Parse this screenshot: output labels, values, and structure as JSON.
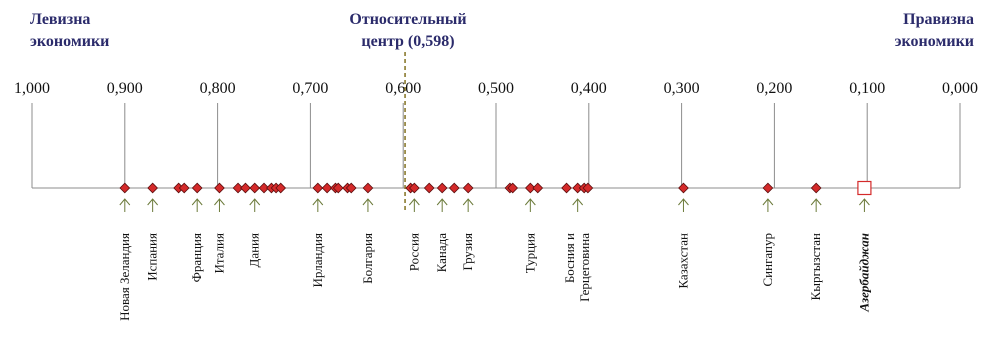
{
  "headers": {
    "left": [
      "Левизна",
      "экономики"
    ],
    "center": [
      "Относительный",
      "центр (0,598)"
    ],
    "right": [
      "Правизна",
      "экономики"
    ]
  },
  "colors": {
    "header": "#2b2b6b",
    "axis": "#8c8c8c",
    "marker_fill": "#d42a2a",
    "marker_stroke": "#5a0d0d",
    "center_line": "#8a7a2e",
    "arrow": "#6b7a3a",
    "highlight_fill": "#ffffff",
    "highlight_stroke": "#d42a2a"
  },
  "chart_data": {
    "type": "scatter",
    "title": "",
    "axis": {
      "direction": "reversed",
      "min": 0.0,
      "max": 1.0,
      "ticks": [
        1.0,
        0.9,
        0.8,
        0.7,
        0.6,
        0.5,
        0.4,
        0.3,
        0.2,
        0.1,
        0.0
      ],
      "tick_labels": [
        "1,000",
        "0,900",
        "0,800",
        "0,700",
        "0,600",
        "0,500",
        "0,400",
        "0,300",
        "0,200",
        "0,100",
        "0,000"
      ]
    },
    "center_value": 0.598,
    "points": [
      0.9,
      0.87,
      0.842,
      0.836,
      0.822,
      0.798,
      0.778,
      0.77,
      0.76,
      0.75,
      0.742,
      0.737,
      0.732,
      0.692,
      0.682,
      0.673,
      0.67,
      0.66,
      0.656,
      0.638,
      0.592,
      0.588,
      0.572,
      0.558,
      0.545,
      0.53,
      0.485,
      0.482,
      0.463,
      0.455,
      0.424,
      0.412,
      0.405,
      0.401,
      0.298,
      0.207,
      0.155
    ],
    "highlight_point": {
      "value": 0.103,
      "label": "Азербайджан"
    },
    "labelled": [
      {
        "label": "Новая Зеландия",
        "value": 0.9
      },
      {
        "label": "Испания",
        "value": 0.87
      },
      {
        "label": "Франция",
        "value": 0.822
      },
      {
        "label": "Италия",
        "value": 0.798
      },
      {
        "label": "Дания",
        "value": 0.76
      },
      {
        "label": "Ирландия",
        "value": 0.692
      },
      {
        "label": "Болгария",
        "value": 0.638
      },
      {
        "label": "Россия",
        "value": 0.588
      },
      {
        "label": "Канада",
        "value": 0.558
      },
      {
        "label": "Грузия",
        "value": 0.53
      },
      {
        "label": "Турция",
        "value": 0.463
      },
      {
        "label": "Босния и|Герцеговина",
        "value": 0.412
      },
      {
        "label": "Казахстан",
        "value": 0.298
      },
      {
        "label": "Сингапур",
        "value": 0.207
      },
      {
        "label": "Кыргызстан",
        "value": 0.155
      },
      {
        "label": "Азербайджан",
        "value": 0.103
      }
    ]
  }
}
